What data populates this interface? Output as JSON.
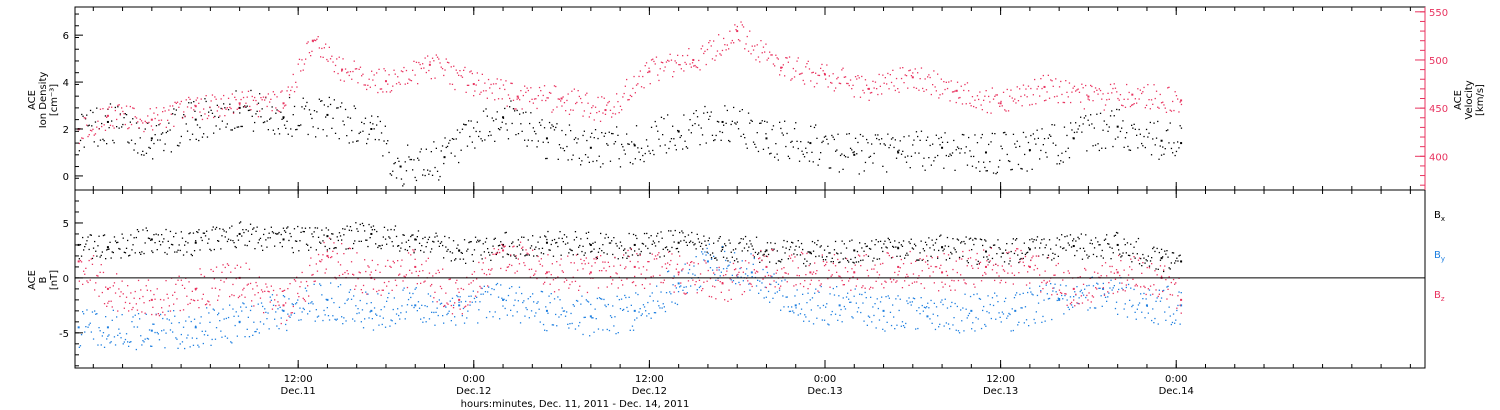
{
  "colors": {
    "black": "#000000",
    "pink": "#e8335f",
    "blue": "#1e7fe0"
  },
  "chart_data": [
    {
      "type": "scatter",
      "title": "",
      "ylabel_lines": [
        "ACE",
        "Ion Density",
        "[cm⁻³]"
      ],
      "ylabel2_lines": [
        "ACE",
        "Velocity",
        "[km/s]"
      ],
      "x_range": [
        "Dec 10, 2011 20:45",
        "Dec 14, 2011 17:00"
      ],
      "ylim": [
        -0.6,
        7.2
      ],
      "yticks": [
        0,
        2,
        4,
        6
      ],
      "ylim2": [
        365,
        555
      ],
      "yticks2": [
        400,
        450,
        500,
        550
      ],
      "series": [
        {
          "axis": "left",
          "color": "#000000",
          "points": [
            {
              "t": "Dec 10 21:00",
              "y": 2.0
            },
            {
              "t": "Dec 10 23:00",
              "y": 2.3
            },
            {
              "t": "Dec 11 02:00",
              "y": 1.6
            },
            {
              "t": "Dec 11 05:00",
              "y": 2.4
            },
            {
              "t": "Dec 11 08:00",
              "y": 2.9
            },
            {
              "t": "Dec 11 11:00",
              "y": 2.5
            },
            {
              "t": "Dec 11 14:00",
              "y": 2.6
            },
            {
              "t": "Dec 11 17:00",
              "y": 2.0
            },
            {
              "t": "Dec 11 19:00",
              "y": 0.4
            },
            {
              "t": "Dec 11 22:00",
              "y": 0.8
            },
            {
              "t": "Dec 12 02:00",
              "y": 2.5
            },
            {
              "t": "Dec 12 05:00",
              "y": 1.6
            },
            {
              "t": "Dec 12 08:00",
              "y": 1.2
            },
            {
              "t": "Dec 12 11:00",
              "y": 1.3
            },
            {
              "t": "Dec 12 14:00",
              "y": 1.9
            },
            {
              "t": "Dec 12 17:00",
              "y": 2.3
            },
            {
              "t": "Dec 12 20:00",
              "y": 1.6
            },
            {
              "t": "Dec 12 23:00",
              "y": 1.4
            },
            {
              "t": "Dec 13 02:00",
              "y": 0.9
            },
            {
              "t": "Dec 13 05:00",
              "y": 1.0
            },
            {
              "t": "Dec 13 08:00",
              "y": 1.2
            },
            {
              "t": "Dec 13 11:00",
              "y": 1.0
            },
            {
              "t": "Dec 13 14:00",
              "y": 1.1
            },
            {
              "t": "Dec 13 17:00",
              "y": 1.6
            },
            {
              "t": "Dec 13 20:00",
              "y": 2.1
            },
            {
              "t": "Dec 13 23:00",
              "y": 1.5
            },
            {
              "t": "Dec 14 00:20",
              "y": 1.4
            }
          ]
        },
        {
          "axis": "right",
          "color": "#e8335f",
          "points": [
            {
              "t": "Dec 10 21:00",
              "y": 428
            },
            {
              "t": "Dec 10 23:00",
              "y": 442
            },
            {
              "t": "Dec 11 02:00",
              "y": 438
            },
            {
              "t": "Dec 11 05:00",
              "y": 452
            },
            {
              "t": "Dec 11 08:00",
              "y": 455
            },
            {
              "t": "Dec 11 11:00",
              "y": 455
            },
            {
              "t": "Dec 11 13:00",
              "y": 520
            },
            {
              "t": "Dec 11 15:00",
              "y": 490
            },
            {
              "t": "Dec 11 18:00",
              "y": 478
            },
            {
              "t": "Dec 11 21:00",
              "y": 495
            },
            {
              "t": "Dec 12 00:00",
              "y": 475
            },
            {
              "t": "Dec 12 03:00",
              "y": 462
            },
            {
              "t": "Dec 12 06:00",
              "y": 460
            },
            {
              "t": "Dec 12 09:00",
              "y": 448
            },
            {
              "t": "Dec 12 12:00",
              "y": 488
            },
            {
              "t": "Dec 12 15:00",
              "y": 500
            },
            {
              "t": "Dec 12 18:00",
              "y": 530
            },
            {
              "t": "Dec 12 21:00",
              "y": 492
            },
            {
              "t": "Dec 13 00:00",
              "y": 485
            },
            {
              "t": "Dec 13 03:00",
              "y": 470
            },
            {
              "t": "Dec 13 06:00",
              "y": 482
            },
            {
              "t": "Dec 13 09:00",
              "y": 468
            },
            {
              "t": "Dec 13 12:00",
              "y": 455
            },
            {
              "t": "Dec 13 15:00",
              "y": 472
            },
            {
              "t": "Dec 13 18:00",
              "y": 462
            },
            {
              "t": "Dec 13 21:00",
              "y": 464
            },
            {
              "t": "Dec 14 00:20",
              "y": 458
            }
          ]
        }
      ]
    },
    {
      "type": "scatter",
      "title": "",
      "ylabel_lines": [
        "ACE",
        "B",
        "[nT]"
      ],
      "x_range": [
        "Dec 10, 2011 20:45",
        "Dec 14, 2011 17:00"
      ],
      "ylim": [
        -8.2,
        8.0
      ],
      "yticks": [
        -5,
        0,
        5
      ],
      "zero_line": true,
      "series": [
        {
          "name": "Bx",
          "color": "#000000",
          "points": [
            {
              "t": "Dec 10 21:00",
              "y": 3.0
            },
            {
              "t": "Dec 10 23:00",
              "y": 2.8
            },
            {
              "t": "Dec 11 02:00",
              "y": 3.5
            },
            {
              "t": "Dec 11 05:00",
              "y": 3.2
            },
            {
              "t": "Dec 11 08:00",
              "y": 4.0
            },
            {
              "t": "Dec 11 11:00",
              "y": 3.5
            },
            {
              "t": "Dec 11 14:00",
              "y": 3.8
            },
            {
              "t": "Dec 11 17:00",
              "y": 4.0
            },
            {
              "t": "Dec 11 20:00",
              "y": 3.5
            },
            {
              "t": "Dec 11 23:00",
              "y": 2.5
            },
            {
              "t": "Dec 12 02:00",
              "y": 3.0
            },
            {
              "t": "Dec 12 05:00",
              "y": 3.2
            },
            {
              "t": "Dec 12 08:00",
              "y": 3.0
            },
            {
              "t": "Dec 12 11:00",
              "y": 3.0
            },
            {
              "t": "Dec 12 14:00",
              "y": 3.2
            },
            {
              "t": "Dec 12 17:00",
              "y": 2.8
            },
            {
              "t": "Dec 12 20:00",
              "y": 2.5
            },
            {
              "t": "Dec 12 23:00",
              "y": 2.3
            },
            {
              "t": "Dec 13 02:00",
              "y": 2.5
            },
            {
              "t": "Dec 13 05:00",
              "y": 2.7
            },
            {
              "t": "Dec 13 08:00",
              "y": 2.8
            },
            {
              "t": "Dec 13 11:00",
              "y": 2.4
            },
            {
              "t": "Dec 13 14:00",
              "y": 2.6
            },
            {
              "t": "Dec 13 17:00",
              "y": 2.9
            },
            {
              "t": "Dec 13 20:00",
              "y": 3.0
            },
            {
              "t": "Dec 13 23:00",
              "y": 1.8
            },
            {
              "t": "Dec 14 00:20",
              "y": 1.5
            }
          ]
        },
        {
          "name": "By",
          "color": "#1e7fe0",
          "points": [
            {
              "t": "Dec 10 21:00",
              "y": -4.5
            },
            {
              "t": "Dec 10 23:00",
              "y": -4.5
            },
            {
              "t": "Dec 11 02:00",
              "y": -4.8
            },
            {
              "t": "Dec 11 05:00",
              "y": -4.5
            },
            {
              "t": "Dec 11 08:00",
              "y": -4.0
            },
            {
              "t": "Dec 11 11:00",
              "y": -3.0
            },
            {
              "t": "Dec 11 14:00",
              "y": -2.0
            },
            {
              "t": "Dec 11 17:00",
              "y": -3.0
            },
            {
              "t": "Dec 11 20:00",
              "y": -2.5
            },
            {
              "t": "Dec 11 23:00",
              "y": -2.5
            },
            {
              "t": "Dec 12 02:00",
              "y": -2.0
            },
            {
              "t": "Dec 12 05:00",
              "y": -3.0
            },
            {
              "t": "Dec 12 08:00",
              "y": -3.5
            },
            {
              "t": "Dec 12 11:00",
              "y": -3.0
            },
            {
              "t": "Dec 12 14:00",
              "y": -0.5
            },
            {
              "t": "Dec 12 16:00",
              "y": 1.5
            },
            {
              "t": "Dec 12 19:00",
              "y": 0.5
            },
            {
              "t": "Dec 12 22:00",
              "y": -2.5
            },
            {
              "t": "Dec 13 01:00",
              "y": -2.5
            },
            {
              "t": "Dec 13 04:00",
              "y": -3.0
            },
            {
              "t": "Dec 13 07:00",
              "y": -3.5
            },
            {
              "t": "Dec 13 10:00",
              "y": -3.0
            },
            {
              "t": "Dec 13 13:00",
              "y": -3.0
            },
            {
              "t": "Dec 13 16:00",
              "y": -2.0
            },
            {
              "t": "Dec 13 19:00",
              "y": -1.0
            },
            {
              "t": "Dec 13 22:00",
              "y": -2.5
            },
            {
              "t": "Dec 14 00:20",
              "y": -2.5
            }
          ]
        },
        {
          "name": "Bz",
          "color": "#e8335f",
          "points": [
            {
              "t": "Dec 10 21:00",
              "y": 1.5
            },
            {
              "t": "Dec 10 23:00",
              "y": -1.0
            },
            {
              "t": "Dec 11 02:00",
              "y": -2.0
            },
            {
              "t": "Dec 11 05:00",
              "y": -1.0
            },
            {
              "t": "Dec 11 08:00",
              "y": 0.0
            },
            {
              "t": "Dec 11 11:00",
              "y": -2.5
            },
            {
              "t": "Dec 11 14:00",
              "y": 2.0
            },
            {
              "t": "Dec 11 17:00",
              "y": 0.0
            },
            {
              "t": "Dec 11 20:00",
              "y": 1.0
            },
            {
              "t": "Dec 11 23:00",
              "y": -2.0
            },
            {
              "t": "Dec 12 02:00",
              "y": 2.5
            },
            {
              "t": "Dec 12 05:00",
              "y": 0.5
            },
            {
              "t": "Dec 12 08:00",
              "y": 0.5
            },
            {
              "t": "Dec 12 11:00",
              "y": 1.0
            },
            {
              "t": "Dec 12 14:00",
              "y": 0.5
            },
            {
              "t": "Dec 12 17:00",
              "y": -0.5
            },
            {
              "t": "Dec 12 20:00",
              "y": 1.0
            },
            {
              "t": "Dec 12 23:00",
              "y": 0.5
            },
            {
              "t": "Dec 13 02:00",
              "y": 0.5
            },
            {
              "t": "Dec 13 05:00",
              "y": 1.0
            },
            {
              "t": "Dec 13 08:00",
              "y": 0.5
            },
            {
              "t": "Dec 13 11:00",
              "y": 1.0
            },
            {
              "t": "Dec 13 14:00",
              "y": 1.0
            },
            {
              "t": "Dec 13 17:00",
              "y": -1.0
            },
            {
              "t": "Dec 13 20:00",
              "y": 0.5
            },
            {
              "t": "Dec 13 23:00",
              "y": 0.0
            },
            {
              "t": "Dec 14 00:20",
              "y": -2.0
            }
          ]
        }
      ],
      "legend": {
        "placement": "right",
        "entries": [
          {
            "base": "B",
            "sub": "x",
            "color": "#000000"
          },
          {
            "base": "B",
            "sub": "y",
            "color": "#1e7fe0"
          },
          {
            "base": "B",
            "sub": "z",
            "color": "#e8335f"
          }
        ]
      }
    }
  ],
  "x_axis": {
    "ticks": [
      {
        "time": "12:00",
        "date": "Dec.11",
        "t": "Dec 11 12:00"
      },
      {
        "time": "0:00",
        "date": "Dec.12",
        "t": "Dec 12 00:00"
      },
      {
        "time": "12:00",
        "date": "Dec.12",
        "t": "Dec 12 12:00"
      },
      {
        "time": "0:00",
        "date": "Dec.13",
        "t": "Dec 13 00:00"
      },
      {
        "time": "12:00",
        "date": "Dec.13",
        "t": "Dec 13 12:00"
      },
      {
        "time": "0:00",
        "date": "Dec.14",
        "t": "Dec 14 00:00"
      }
    ],
    "xlabel": "hours:minutes, Dec. 11, 2011 - Dec. 14, 2011"
  }
}
